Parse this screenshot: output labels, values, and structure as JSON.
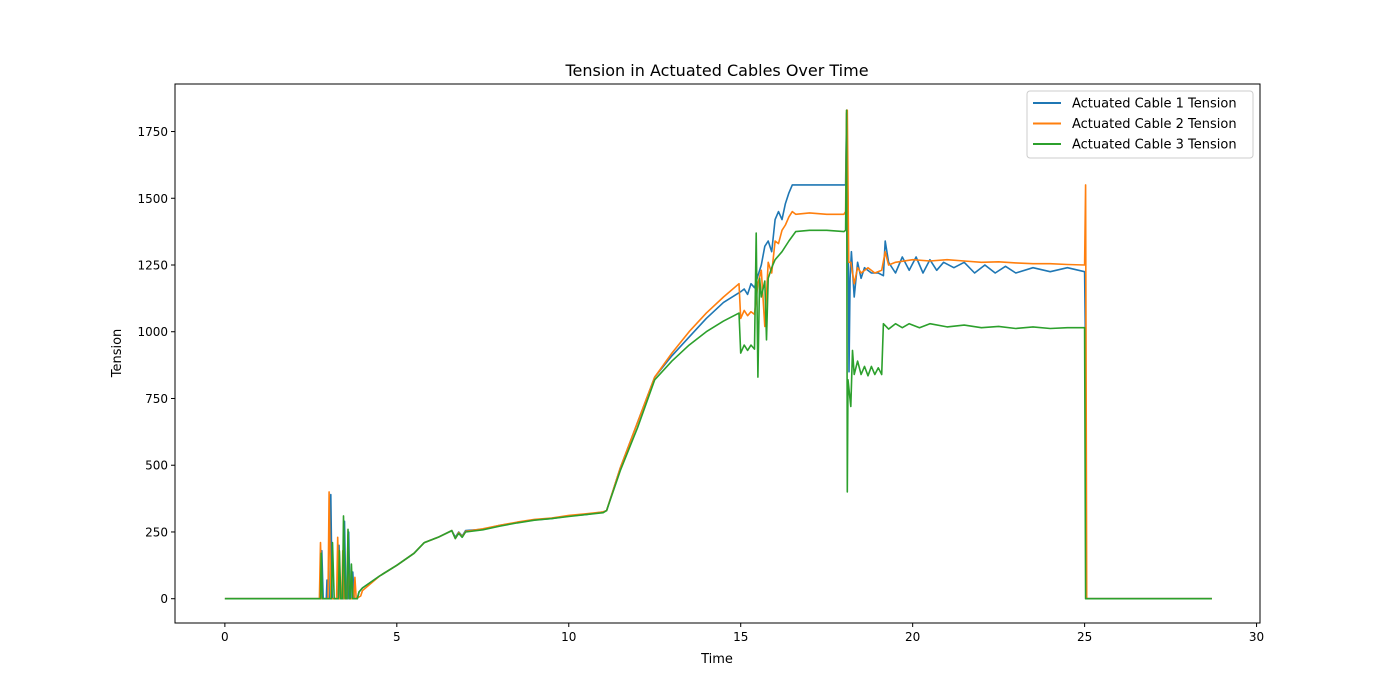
{
  "chart_data": {
    "type": "line",
    "title": "Tension in Actuated Cables Over Time",
    "xlabel": "Time",
    "ylabel": "Tension",
    "xlim": [
      -1.45,
      30.1
    ],
    "ylim": [
      -91,
      1928
    ],
    "xticks": [
      0,
      5,
      10,
      15,
      20,
      25,
      30
    ],
    "yticks": [
      0,
      250,
      500,
      750,
      1000,
      1250,
      1500,
      1750
    ],
    "grid": false,
    "legend_position": "top-right",
    "series": [
      {
        "name": "Actuated Cable 1 Tension",
        "color": "#1f77b4",
        "points": [
          [
            0,
            0
          ],
          [
            2.8,
            0
          ],
          [
            2.82,
            180
          ],
          [
            2.86,
            0
          ],
          [
            2.95,
            0
          ],
          [
            2.97,
            70
          ],
          [
            3.0,
            0
          ],
          [
            3.05,
            0
          ],
          [
            3.08,
            390
          ],
          [
            3.12,
            0
          ],
          [
            3.3,
            0
          ],
          [
            3.32,
            200
          ],
          [
            3.36,
            0
          ],
          [
            3.45,
            0
          ],
          [
            3.48,
            290
          ],
          [
            3.52,
            0
          ],
          [
            3.58,
            0
          ],
          [
            3.6,
            250
          ],
          [
            3.64,
            0
          ],
          [
            3.7,
            0
          ],
          [
            3.72,
            100
          ],
          [
            3.76,
            0
          ],
          [
            3.85,
            0
          ],
          [
            3.9,
            25
          ],
          [
            4.0,
            40
          ],
          [
            4.5,
            85
          ],
          [
            5.0,
            125
          ],
          [
            5.5,
            170
          ],
          [
            5.8,
            210
          ],
          [
            6.2,
            230
          ],
          [
            6.6,
            255
          ],
          [
            6.7,
            230
          ],
          [
            6.8,
            250
          ],
          [
            6.9,
            235
          ],
          [
            7.0,
            255
          ],
          [
            7.5,
            260
          ],
          [
            8.0,
            275
          ],
          [
            8.5,
            285
          ],
          [
            9.0,
            295
          ],
          [
            9.5,
            300
          ],
          [
            10.0,
            310
          ],
          [
            10.5,
            315
          ],
          [
            11.0,
            325
          ],
          [
            11.1,
            330
          ],
          [
            11.5,
            490
          ],
          [
            12.0,
            660
          ],
          [
            12.5,
            830
          ],
          [
            13.0,
            910
          ],
          [
            13.5,
            980
          ],
          [
            14.0,
            1050
          ],
          [
            14.5,
            1110
          ],
          [
            15.0,
            1150
          ],
          [
            15.1,
            1160
          ],
          [
            15.2,
            1140
          ],
          [
            15.3,
            1180
          ],
          [
            15.4,
            1165
          ],
          [
            15.5,
            1210
          ],
          [
            15.6,
            1250
          ],
          [
            15.7,
            1320
          ],
          [
            15.8,
            1340
          ],
          [
            15.9,
            1300
          ],
          [
            16.0,
            1420
          ],
          [
            16.1,
            1450
          ],
          [
            16.2,
            1420
          ],
          [
            16.3,
            1480
          ],
          [
            16.4,
            1520
          ],
          [
            16.5,
            1550
          ],
          [
            17.0,
            1550
          ],
          [
            17.5,
            1550
          ],
          [
            18.05,
            1550
          ],
          [
            18.08,
            1820
          ],
          [
            18.12,
            1480
          ],
          [
            18.15,
            850
          ],
          [
            18.18,
            1200
          ],
          [
            18.22,
            1300
          ],
          [
            18.3,
            1130
          ],
          [
            18.4,
            1260
          ],
          [
            18.5,
            1200
          ],
          [
            18.6,
            1240
          ],
          [
            18.8,
            1220
          ],
          [
            19.0,
            1220
          ],
          [
            19.15,
            1210
          ],
          [
            19.2,
            1340
          ],
          [
            19.3,
            1260
          ],
          [
            19.5,
            1220
          ],
          [
            19.7,
            1280
          ],
          [
            19.9,
            1230
          ],
          [
            20.1,
            1280
          ],
          [
            20.3,
            1220
          ],
          [
            20.5,
            1270
          ],
          [
            20.7,
            1230
          ],
          [
            20.9,
            1260
          ],
          [
            21.2,
            1240
          ],
          [
            21.5,
            1260
          ],
          [
            21.8,
            1220
          ],
          [
            22.1,
            1250
          ],
          [
            22.4,
            1220
          ],
          [
            22.7,
            1245
          ],
          [
            23.0,
            1220
          ],
          [
            23.5,
            1240
          ],
          [
            24.0,
            1225
          ],
          [
            24.5,
            1240
          ],
          [
            25.0,
            1225
          ],
          [
            25.02,
            1000
          ],
          [
            25.05,
            0
          ],
          [
            26,
            0
          ],
          [
            27,
            0
          ],
          [
            28.7,
            0
          ]
        ]
      },
      {
        "name": "Actuated Cable 2 Tension",
        "color": "#ff7f0e",
        "points": [
          [
            0,
            0
          ],
          [
            2.75,
            0
          ],
          [
            2.78,
            210
          ],
          [
            2.82,
            0
          ],
          [
            3.0,
            0
          ],
          [
            3.03,
            400
          ],
          [
            3.08,
            0
          ],
          [
            3.25,
            0
          ],
          [
            3.28,
            230
          ],
          [
            3.32,
            0
          ],
          [
            3.4,
            0
          ],
          [
            3.43,
            180
          ],
          [
            3.47,
            0
          ],
          [
            3.55,
            0
          ],
          [
            3.58,
            240
          ],
          [
            3.62,
            0
          ],
          [
            3.75,
            0
          ],
          [
            3.78,
            80
          ],
          [
            3.82,
            0
          ],
          [
            3.95,
            10
          ],
          [
            4.0,
            30
          ],
          [
            4.5,
            85
          ],
          [
            5.0,
            125
          ],
          [
            5.5,
            170
          ],
          [
            5.8,
            210
          ],
          [
            6.2,
            230
          ],
          [
            6.6,
            255
          ],
          [
            6.7,
            225
          ],
          [
            6.8,
            248
          ],
          [
            6.9,
            232
          ],
          [
            7.0,
            252
          ],
          [
            7.5,
            262
          ],
          [
            8.0,
            275
          ],
          [
            8.5,
            287
          ],
          [
            9.0,
            297
          ],
          [
            9.5,
            302
          ],
          [
            10.0,
            312
          ],
          [
            10.5,
            318
          ],
          [
            11.0,
            325
          ],
          [
            11.1,
            330
          ],
          [
            11.5,
            490
          ],
          [
            12.0,
            660
          ],
          [
            12.5,
            830
          ],
          [
            13.0,
            920
          ],
          [
            13.5,
            1000
          ],
          [
            14.0,
            1070
          ],
          [
            14.5,
            1130
          ],
          [
            14.95,
            1180
          ],
          [
            15.0,
            1050
          ],
          [
            15.1,
            1080
          ],
          [
            15.2,
            1060
          ],
          [
            15.3,
            1075
          ],
          [
            15.4,
            1065
          ],
          [
            15.5,
            1180
          ],
          [
            15.6,
            1230
          ],
          [
            15.7,
            1020
          ],
          [
            15.8,
            1260
          ],
          [
            15.9,
            1220
          ],
          [
            16.0,
            1340
          ],
          [
            16.1,
            1330
          ],
          [
            16.2,
            1380
          ],
          [
            16.3,
            1400
          ],
          [
            16.4,
            1430
          ],
          [
            16.5,
            1450
          ],
          [
            16.6,
            1440
          ],
          [
            17.0,
            1445
          ],
          [
            17.5,
            1440
          ],
          [
            18.0,
            1440
          ],
          [
            18.05,
            1450
          ],
          [
            18.08,
            1830
          ],
          [
            18.1,
            1830
          ],
          [
            18.14,
            1260
          ],
          [
            18.2,
            1260
          ],
          [
            18.3,
            1180
          ],
          [
            18.4,
            1240
          ],
          [
            18.5,
            1220
          ],
          [
            18.7,
            1240
          ],
          [
            18.9,
            1220
          ],
          [
            19.1,
            1230
          ],
          [
            19.2,
            1300
          ],
          [
            19.3,
            1250
          ],
          [
            19.5,
            1260
          ],
          [
            20.0,
            1270
          ],
          [
            20.5,
            1265
          ],
          [
            21.0,
            1270
          ],
          [
            21.5,
            1265
          ],
          [
            22.0,
            1260
          ],
          [
            22.5,
            1262
          ],
          [
            23.0,
            1258
          ],
          [
            23.5,
            1255
          ],
          [
            24.0,
            1255
          ],
          [
            24.5,
            1252
          ],
          [
            25.0,
            1250
          ],
          [
            25.03,
            1550
          ],
          [
            25.06,
            0
          ],
          [
            26,
            0
          ],
          [
            27,
            0
          ],
          [
            28.7,
            0
          ]
        ]
      },
      {
        "name": "Actuated Cable 3 Tension",
        "color": "#2ca02c",
        "points": [
          [
            0,
            0
          ],
          [
            2.78,
            0
          ],
          [
            2.8,
            170
          ],
          [
            2.84,
            0
          ],
          [
            3.1,
            0
          ],
          [
            3.13,
            210
          ],
          [
            3.18,
            0
          ],
          [
            3.3,
            0
          ],
          [
            3.33,
            180
          ],
          [
            3.37,
            0
          ],
          [
            3.42,
            0
          ],
          [
            3.45,
            310
          ],
          [
            3.5,
            0
          ],
          [
            3.55,
            0
          ],
          [
            3.58,
            260
          ],
          [
            3.62,
            0
          ],
          [
            3.65,
            0
          ],
          [
            3.68,
            130
          ],
          [
            3.72,
            0
          ],
          [
            3.85,
            0
          ],
          [
            3.9,
            25
          ],
          [
            4.0,
            40
          ],
          [
            4.5,
            85
          ],
          [
            5.0,
            125
          ],
          [
            5.5,
            170
          ],
          [
            5.8,
            210
          ],
          [
            6.2,
            230
          ],
          [
            6.6,
            255
          ],
          [
            6.7,
            225
          ],
          [
            6.8,
            245
          ],
          [
            6.9,
            230
          ],
          [
            7.0,
            250
          ],
          [
            7.5,
            258
          ],
          [
            8.0,
            272
          ],
          [
            8.5,
            284
          ],
          [
            9.0,
            294
          ],
          [
            9.5,
            300
          ],
          [
            10.0,
            308
          ],
          [
            10.5,
            315
          ],
          [
            11.0,
            322
          ],
          [
            11.1,
            330
          ],
          [
            11.5,
            480
          ],
          [
            12.0,
            640
          ],
          [
            12.5,
            820
          ],
          [
            13.0,
            890
          ],
          [
            13.5,
            950
          ],
          [
            14.0,
            1000
          ],
          [
            14.5,
            1040
          ],
          [
            14.95,
            1070
          ],
          [
            15.0,
            920
          ],
          [
            15.1,
            950
          ],
          [
            15.2,
            930
          ],
          [
            15.3,
            950
          ],
          [
            15.4,
            935
          ],
          [
            15.45,
            1370
          ],
          [
            15.5,
            830
          ],
          [
            15.55,
            1200
          ],
          [
            15.6,
            1130
          ],
          [
            15.7,
            1190
          ],
          [
            15.75,
            970
          ],
          [
            15.8,
            1200
          ],
          [
            15.9,
            1240
          ],
          [
            16.0,
            1270
          ],
          [
            16.2,
            1300
          ],
          [
            16.4,
            1340
          ],
          [
            16.6,
            1375
          ],
          [
            17.0,
            1380
          ],
          [
            17.5,
            1380
          ],
          [
            18.0,
            1375
          ],
          [
            18.05,
            1380
          ],
          [
            18.08,
            1830
          ],
          [
            18.1,
            400
          ],
          [
            18.12,
            820
          ],
          [
            18.2,
            720
          ],
          [
            18.25,
            930
          ],
          [
            18.3,
            840
          ],
          [
            18.4,
            890
          ],
          [
            18.5,
            840
          ],
          [
            18.6,
            870
          ],
          [
            18.7,
            835
          ],
          [
            18.8,
            870
          ],
          [
            18.9,
            840
          ],
          [
            19.0,
            865
          ],
          [
            19.1,
            840
          ],
          [
            19.15,
            1030
          ],
          [
            19.3,
            1010
          ],
          [
            19.5,
            1030
          ],
          [
            19.7,
            1015
          ],
          [
            19.9,
            1030
          ],
          [
            20.2,
            1015
          ],
          [
            20.5,
            1030
          ],
          [
            21.0,
            1018
          ],
          [
            21.5,
            1025
          ],
          [
            22.0,
            1015
          ],
          [
            22.5,
            1020
          ],
          [
            23.0,
            1012
          ],
          [
            23.5,
            1018
          ],
          [
            24.0,
            1012
          ],
          [
            24.5,
            1015
          ],
          [
            25.0,
            1015
          ],
          [
            25.03,
            0
          ],
          [
            26,
            0
          ],
          [
            27,
            0
          ],
          [
            28.7,
            0
          ]
        ]
      }
    ]
  }
}
